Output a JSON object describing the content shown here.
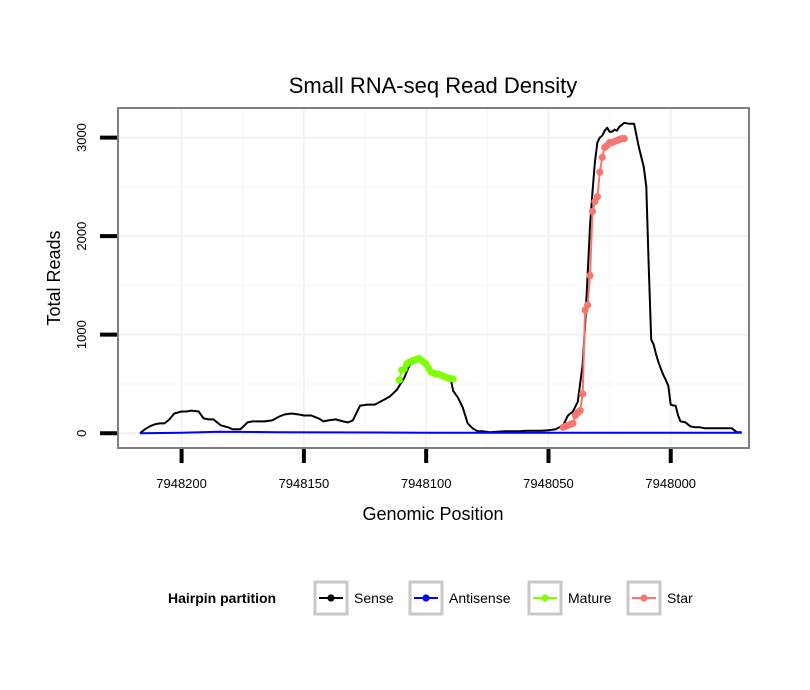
{
  "chart_data": {
    "type": "line",
    "title": "Small RNA-seq Read Density",
    "xlabel": "Genomic Position",
    "ylabel": "Total Reads",
    "x_reversed": true,
    "xlim": [
      7948226,
      7947968
    ],
    "ylim": [
      -150,
      3300
    ],
    "x_ticks": [
      7948200,
      7948150,
      7948100,
      7948050,
      7948000
    ],
    "x_tick_labels": [
      "7948200",
      "7948150",
      "7948100",
      "7948050",
      "7948000"
    ],
    "y_ticks": [
      0,
      1000,
      2000,
      3000
    ],
    "y_tick_labels": [
      "0",
      "1000",
      "2000",
      "3000"
    ],
    "grid": true,
    "legend": {
      "title": "Hairpin partition",
      "position": "bottom",
      "entries": [
        "Sense",
        "Antisense",
        "Mature",
        "Star"
      ]
    },
    "series": [
      {
        "name": "Sense",
        "color": "#000000",
        "x": [
          7948217,
          7948215,
          7948213,
          7948211,
          7948209,
          7948207,
          7948205,
          7948203,
          7948200,
          7948198,
          7948196,
          7948193,
          7948191,
          7948189,
          7948187,
          7948184,
          7948181,
          7948179,
          7948176,
          7948173,
          7948171,
          7948169,
          7948166,
          7948163,
          7948160,
          7948158,
          7948155,
          7948152,
          7948150,
          7948147,
          7948144,
          7948142,
          7948140,
          7948137,
          7948134,
          7948132,
          7948130,
          7948127,
          7948124,
          7948121,
          7948118,
          7948115,
          7948112,
          7948109,
          7948107,
          7948105,
          7948103,
          7948100,
          7948098,
          7948096,
          7948094,
          7948092,
          7948090,
          7948089,
          7948087,
          7948085,
          7948083,
          7948081,
          7948079,
          7948077,
          7948074,
          7948071,
          7948068,
          7948065,
          7948062,
          7948059,
          7948056,
          7948053,
          7948050,
          7948047,
          7948044,
          7948042,
          7948040,
          7948038,
          7948036,
          7948035,
          7948034,
          7948033,
          7948032,
          7948031,
          7948030,
          7948029,
          7948028,
          7948027,
          7948026,
          7948025,
          7948024,
          7948023,
          7948022,
          7948021,
          7948019,
          7948017,
          7948015,
          7948013,
          7948011,
          7948010,
          7948009,
          7948008,
          7948007,
          7948006,
          7948005,
          7948004,
          7948003,
          7948002,
          7948001,
          7948000,
          7947999,
          7947998,
          7947997,
          7947996,
          7947994,
          7947992,
          7947990,
          7947988,
          7947986,
          7947984,
          7947982,
          7947980,
          7947978,
          7947975,
          7947973,
          7947971
        ],
        "y": [
          0,
          40,
          70,
          90,
          100,
          100,
          140,
          200,
          220,
          220,
          230,
          220,
          150,
          140,
          140,
          80,
          60,
          40,
          40,
          110,
          120,
          120,
          120,
          130,
          170,
          190,
          200,
          190,
          180,
          180,
          150,
          120,
          130,
          140,
          120,
          110,
          130,
          280,
          290,
          290,
          330,
          370,
          440,
          560,
          680,
          740,
          760,
          720,
          640,
          620,
          610,
          590,
          560,
          430,
          360,
          260,
          100,
          50,
          20,
          20,
          10,
          15,
          20,
          20,
          20,
          25,
          25,
          25,
          30,
          40,
          80,
          180,
          220,
          320,
          700,
          1100,
          1600,
          2100,
          2450,
          2750,
          2950,
          3000,
          3020,
          3070,
          3100,
          3060,
          3060,
          3080,
          3070,
          3110,
          3150,
          3140,
          3140,
          2900,
          2700,
          2500,
          1700,
          950,
          900,
          800,
          720,
          650,
          590,
          540,
          480,
          290,
          280,
          280,
          180,
          120,
          110,
          70,
          60,
          60,
          50,
          50,
          50,
          50,
          50,
          50,
          10,
          10
        ]
      },
      {
        "name": "Antisense",
        "color": "#0000ff",
        "x": [
          7948217,
          7948200,
          7948185,
          7948160,
          7948100,
          7948050,
          7948000,
          7947971
        ],
        "y": [
          0,
          5,
          15,
          10,
          5,
          5,
          5,
          5
        ]
      },
      {
        "name": "Mature",
        "color": "#7fff00",
        "x": [
          7948111,
          7948110,
          7948109,
          7948108,
          7948107,
          7948106,
          7948105,
          7948104,
          7948103,
          7948102,
          7948101,
          7948100,
          7948099,
          7948098,
          7948097,
          7948096,
          7948095,
          7948094,
          7948093,
          7948092,
          7948091,
          7948090,
          7948089
        ],
        "y": [
          540,
          640,
          650,
          700,
          720,
          730,
          740,
          750,
          760,
          740,
          720,
          700,
          660,
          620,
          610,
          600,
          600,
          590,
          580,
          570,
          560,
          555,
          550
        ]
      },
      {
        "name": "Star",
        "color": "#f8766d",
        "x": [
          7948044,
          7948043,
          7948042,
          7948041,
          7948040,
          7948039,
          7948038,
          7948037,
          7948036,
          7948035,
          7948034,
          7948033,
          7948032,
          7948031,
          7948030,
          7948029,
          7948028,
          7948027,
          7948026,
          7948025,
          7948024,
          7948023,
          7948022,
          7948021,
          7948020,
          7948019
        ],
        "y": [
          60,
          70,
          80,
          90,
          100,
          180,
          210,
          230,
          400,
          1250,
          1300,
          1600,
          2250,
          2350,
          2400,
          2650,
          2800,
          2900,
          2920,
          2950,
          2950,
          2960,
          2970,
          2980,
          2990,
          2990
        ]
      }
    ]
  }
}
